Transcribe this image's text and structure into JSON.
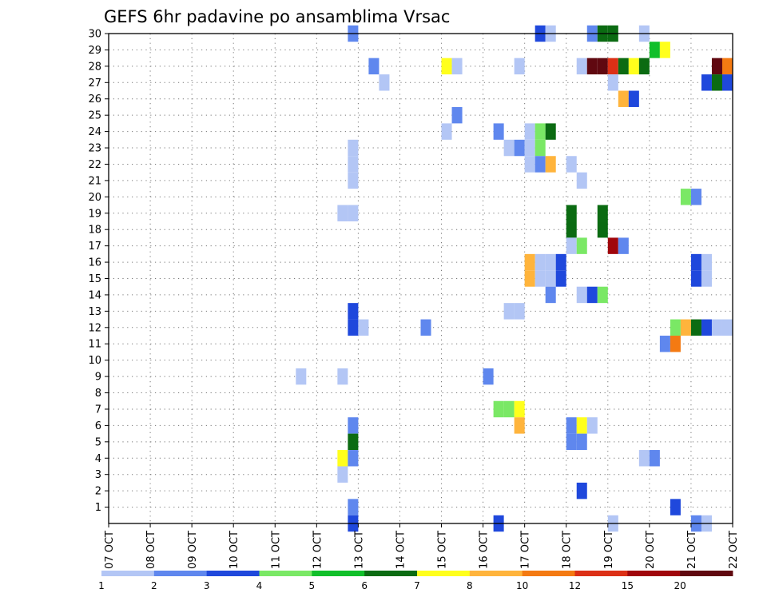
{
  "chart_data": {
    "type": "heatmap",
    "title": "GEFS 6hr padavine po ansamblima Vrsac",
    "xlabel": "",
    "ylabel": "",
    "x_tick_labels": [
      "07 OCT",
      "08 OCT",
      "09 OCT",
      "10 OCT",
      "11 OCT",
      "12 OCT",
      "13 OCT",
      "14 OCT",
      "15 OCT",
      "16 OCT",
      "17 OCT",
      "18 OCT",
      "19 OCT",
      "20 OCT",
      "21 OCT",
      "22 OCT"
    ],
    "y_tick_labels": [
      "1",
      "2",
      "3",
      "4",
      "5",
      "6",
      "7",
      "8",
      "9",
      "10",
      "11",
      "12",
      "13",
      "14",
      "15",
      "16",
      "17",
      "18",
      "19",
      "20",
      "21",
      "22",
      "23",
      "24",
      "25",
      "26",
      "27",
      "28",
      "29",
      "30"
    ],
    "xlim_days": [
      0,
      15
    ],
    "ylim_members": [
      0,
      30
    ],
    "grid": true,
    "colorbar": {
      "placement": "bottom",
      "labels": [
        "1",
        "2",
        "3",
        "4",
        "5",
        "6",
        "7",
        "8",
        "10",
        "12",
        "15",
        "20"
      ],
      "colors": [
        "#b3c6f5",
        "#5f87ee",
        "#1f48dc",
        "#7ae865",
        "#11bf2a",
        "#0b6b12",
        "#ffff1c",
        "#ffb43c",
        "#f47a12",
        "#dc3016",
        "#a0060c",
        "#600810"
      ]
    },
    "cells": [
      {
        "m": 30,
        "t": [
          [
            23,
            1
          ]
        ]
      },
      {
        "m": 30,
        "t": [
          [
            41,
            2
          ],
          [
            42,
            0
          ],
          [
            46,
            1
          ],
          [
            47,
            5
          ],
          [
            48,
            5
          ],
          [
            51,
            0
          ]
        ]
      },
      {
        "m": 29,
        "t": [
          [
            52,
            4
          ],
          [
            53,
            6
          ]
        ]
      },
      {
        "m": 28,
        "t": [
          [
            25,
            1
          ]
        ]
      },
      {
        "m": 28,
        "t": [
          [
            32,
            6
          ],
          [
            33,
            0
          ],
          [
            39,
            0
          ]
        ]
      },
      {
        "m": 28,
        "t": [
          [
            45,
            0
          ],
          [
            46,
            11
          ],
          [
            47,
            11
          ],
          [
            48,
            9
          ],
          [
            49,
            5
          ],
          [
            50,
            6
          ],
          [
            51,
            5
          ],
          [
            58,
            11
          ],
          [
            59,
            8
          ]
        ]
      },
      {
        "m": 27,
        "t": [
          [
            26,
            0
          ],
          [
            48,
            0
          ],
          [
            57,
            2
          ],
          [
            58,
            5
          ],
          [
            59,
            2
          ]
        ]
      },
      {
        "m": 26,
        "t": [
          [
            49,
            7
          ],
          [
            50,
            2
          ]
        ]
      },
      {
        "m": 25,
        "t": [
          [
            33,
            1
          ]
        ]
      },
      {
        "m": 24,
        "t": [
          [
            32,
            0
          ],
          [
            37,
            1
          ],
          [
            40,
            0
          ],
          [
            41,
            3
          ],
          [
            42,
            5
          ]
        ]
      },
      {
        "m": 23,
        "t": [
          [
            23,
            0
          ],
          [
            38,
            0
          ],
          [
            39,
            1
          ],
          [
            40,
            0
          ],
          [
            41,
            3
          ]
        ]
      },
      {
        "m": 22,
        "t": [
          [
            23,
            0
          ],
          [
            40,
            0
          ],
          [
            41,
            1
          ],
          [
            42,
            7
          ],
          [
            44,
            0
          ]
        ]
      },
      {
        "m": 21,
        "t": [
          [
            23,
            0
          ],
          [
            45,
            0
          ]
        ]
      },
      {
        "m": 20,
        "t": [
          [
            55,
            3
          ],
          [
            56,
            1
          ]
        ]
      },
      {
        "m": 19,
        "t": [
          [
            22,
            0
          ],
          [
            23,
            0
          ]
        ]
      },
      {
        "m": 19,
        "t": [
          [
            44,
            5
          ],
          [
            47,
            5
          ]
        ]
      },
      {
        "m": 18,
        "t": [
          [
            44,
            5
          ],
          [
            47,
            5
          ]
        ]
      },
      {
        "m": 17,
        "t": [
          [
            44,
            0
          ],
          [
            45,
            3
          ],
          [
            48,
            10
          ],
          [
            49,
            1
          ]
        ]
      },
      {
        "m": 16,
        "t": [
          [
            40,
            7
          ],
          [
            41,
            0
          ],
          [
            42,
            0
          ],
          [
            43,
            2
          ],
          [
            56,
            2
          ],
          [
            57,
            0
          ]
        ]
      },
      {
        "m": 15,
        "t": [
          [
            40,
            7
          ],
          [
            41,
            0
          ],
          [
            42,
            0
          ],
          [
            43,
            2
          ],
          [
            56,
            2
          ],
          [
            57,
            0
          ]
        ]
      },
      {
        "m": 14,
        "t": [
          [
            42,
            1
          ],
          [
            45,
            0
          ],
          [
            46,
            2
          ],
          [
            47,
            3
          ]
        ]
      },
      {
        "m": 13,
        "t": [
          [
            23,
            2
          ],
          [
            38,
            0
          ],
          [
            39,
            0
          ]
        ]
      },
      {
        "m": 12,
        "t": [
          [
            23,
            2
          ],
          [
            24,
            0
          ],
          [
            30,
            1
          ],
          [
            54,
            3
          ],
          [
            55,
            7
          ],
          [
            56,
            5
          ],
          [
            57,
            2
          ],
          [
            58,
            0
          ],
          [
            59,
            0
          ]
        ]
      },
      {
        "m": 11,
        "t": [
          [
            53,
            1
          ],
          [
            54,
            8
          ]
        ]
      },
      {
        "m": 9,
        "t": [
          [
            18,
            0
          ],
          [
            22,
            0
          ],
          [
            36,
            1
          ]
        ]
      },
      {
        "m": 7,
        "t": [
          [
            37,
            3
          ],
          [
            38,
            3
          ],
          [
            39,
            6
          ]
        ]
      },
      {
        "m": 6,
        "t": [
          [
            23,
            1
          ],
          [
            39,
            7
          ],
          [
            44,
            1
          ],
          [
            45,
            6
          ],
          [
            46,
            0
          ]
        ]
      },
      {
        "m": 5,
        "t": [
          [
            23,
            5
          ],
          [
            44,
            1
          ],
          [
            45,
            1
          ]
        ]
      },
      {
        "m": 4,
        "t": [
          [
            22,
            6
          ],
          [
            23,
            1
          ],
          [
            51,
            0
          ],
          [
            52,
            1
          ]
        ]
      },
      {
        "m": 3,
        "t": [
          [
            22,
            0
          ]
        ]
      },
      {
        "m": 2,
        "t": [
          [
            45,
            2
          ]
        ]
      },
      {
        "m": 1,
        "t": [
          [
            23,
            1
          ],
          [
            54,
            2
          ]
        ]
      },
      {
        "m": 0,
        "t": [
          [
            23,
            2
          ],
          [
            37,
            2
          ],
          [
            48,
            0
          ],
          [
            56,
            1
          ],
          [
            57,
            0
          ]
        ]
      }
    ]
  }
}
